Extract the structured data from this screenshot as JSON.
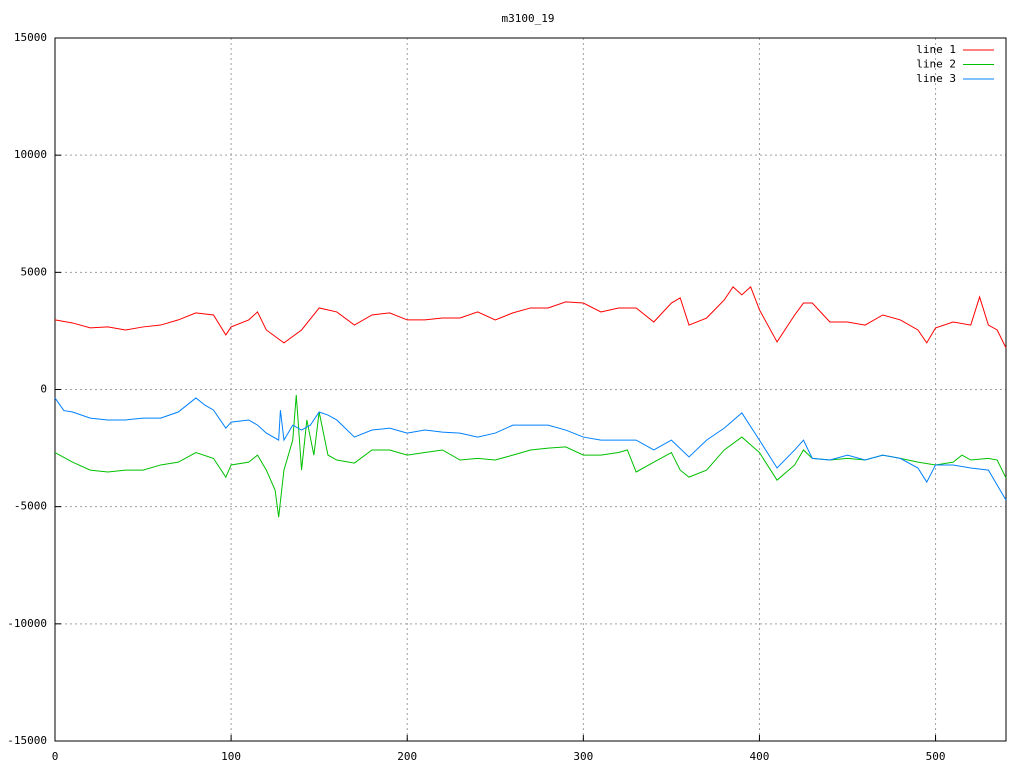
{
  "chart_data": {
    "type": "line",
    "title": "m3100_19",
    "xlim": [
      0,
      540
    ],
    "ylim": [
      -15000,
      15000
    ],
    "xticks": [
      0,
      100,
      200,
      300,
      400,
      500
    ],
    "yticks": [
      -15000,
      -10000,
      -5000,
      0,
      5000,
      10000,
      15000
    ],
    "grid": true,
    "legend": "top-right",
    "series": [
      {
        "name": "line 1",
        "color": "#ff0000",
        "x": [
          0,
          10,
          20,
          30,
          40,
          50,
          60,
          70,
          80,
          90,
          97,
          100,
          110,
          115,
          120,
          130,
          140,
          150,
          160,
          170,
          180,
          190,
          200,
          210,
          220,
          230,
          240,
          250,
          260,
          270,
          280,
          290,
          300,
          310,
          320,
          330,
          340,
          350,
          355,
          360,
          370,
          380,
          385,
          390,
          395,
          400,
          410,
          420,
          425,
          430,
          440,
          450,
          460,
          470,
          480,
          490,
          495,
          500,
          510,
          520,
          525,
          530,
          535,
          540
        ],
        "values": [
          2970,
          2840,
          2630,
          2670,
          2540,
          2670,
          2750,
          2970,
          3270,
          3180,
          2330,
          2670,
          2970,
          3310,
          2540,
          1990,
          2540,
          3480,
          3310,
          2750,
          3180,
          3270,
          2970,
          2970,
          3050,
          3050,
          3310,
          2970,
          3270,
          3480,
          3480,
          3740,
          3690,
          3310,
          3480,
          3480,
          2880,
          3690,
          3910,
          2750,
          3050,
          3820,
          4380,
          4040,
          4380,
          3400,
          2030,
          3180,
          3690,
          3690,
          2880,
          2880,
          2750,
          3180,
          2970,
          2540,
          1990,
          2630,
          2880,
          2750,
          3950,
          2750,
          2540,
          1770
        ]
      },
      {
        "name": "line 2",
        "color": "#00c000",
        "x": [
          0,
          10,
          20,
          30,
          40,
          50,
          60,
          70,
          80,
          90,
          97,
          100,
          110,
          115,
          120,
          125,
          127,
          130,
          135,
          137,
          140,
          143,
          147,
          150,
          155,
          160,
          170,
          180,
          190,
          200,
          210,
          220,
          230,
          240,
          250,
          260,
          270,
          280,
          290,
          300,
          310,
          320,
          325,
          330,
          340,
          350,
          355,
          360,
          370,
          380,
          390,
          400,
          410,
          420,
          425,
          430,
          440,
          450,
          460,
          470,
          480,
          490,
          500,
          510,
          515,
          520,
          530,
          535,
          540
        ],
        "values": [
          -2690,
          -3100,
          -3440,
          -3520,
          -3440,
          -3440,
          -3220,
          -3100,
          -2690,
          -2940,
          -3740,
          -3220,
          -3100,
          -2800,
          -3440,
          -4300,
          -5450,
          -3440,
          -2160,
          -230,
          -3440,
          -1300,
          -2800,
          -960,
          -2800,
          -3010,
          -3140,
          -2580,
          -2580,
          -2800,
          -2690,
          -2580,
          -3010,
          -2940,
          -3010,
          -2800,
          -2580,
          -2500,
          -2450,
          -2800,
          -2800,
          -2690,
          -2580,
          -3520,
          -3100,
          -2690,
          -3440,
          -3740,
          -3440,
          -2580,
          -2030,
          -2690,
          -3870,
          -3220,
          -2580,
          -2940,
          -3010,
          -2940,
          -3010,
          -2800,
          -2940,
          -3100,
          -3220,
          -3100,
          -2800,
          -3010,
          -2940,
          -3010,
          -3780
        ]
      },
      {
        "name": "line 3",
        "color": "#0080ff",
        "x": [
          0,
          5,
          10,
          20,
          30,
          40,
          50,
          60,
          70,
          80,
          85,
          90,
          97,
          100,
          110,
          115,
          120,
          127,
          128,
          130,
          135,
          140,
          145,
          150,
          155,
          160,
          170,
          180,
          190,
          200,
          210,
          220,
          230,
          240,
          250,
          260,
          270,
          280,
          290,
          300,
          310,
          320,
          330,
          340,
          350,
          360,
          370,
          380,
          390,
          400,
          410,
          420,
          425,
          430,
          440,
          450,
          460,
          470,
          480,
          490,
          495,
          500,
          510,
          520,
          530,
          540
        ],
        "values": [
          -360,
          -900,
          -960,
          -1220,
          -1300,
          -1300,
          -1220,
          -1220,
          -960,
          -360,
          -660,
          -880,
          -1650,
          -1390,
          -1300,
          -1520,
          -1860,
          -2160,
          -880,
          -2160,
          -1520,
          -1730,
          -1520,
          -960,
          -1090,
          -1300,
          -2030,
          -1730,
          -1650,
          -1860,
          -1730,
          -1820,
          -1860,
          -2030,
          -1860,
          -1520,
          -1520,
          -1520,
          -1730,
          -2030,
          -2160,
          -2160,
          -2160,
          -2580,
          -2160,
          -2880,
          -2160,
          -1650,
          -1000,
          -2160,
          -3350,
          -2580,
          -2160,
          -2940,
          -3010,
          -2800,
          -3010,
          -2800,
          -2940,
          -3350,
          -3950,
          -3220,
          -3220,
          -3350,
          -3440,
          -4720
        ]
      }
    ]
  }
}
